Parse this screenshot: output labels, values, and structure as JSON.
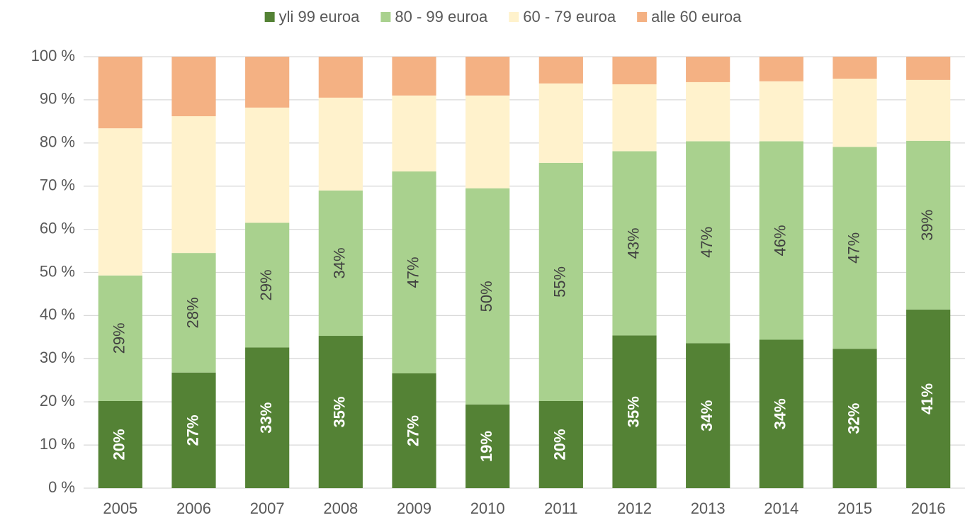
{
  "chart_data": {
    "type": "stacked_bar",
    "categories": [
      "2005",
      "2006",
      "2007",
      "2008",
      "2009",
      "2010",
      "2011",
      "2012",
      "2013",
      "2014",
      "2015",
      "2016"
    ],
    "series": [
      {
        "name": "yli 99 euroa",
        "color": "#548235",
        "values": [
          20.2,
          26.8,
          32.6,
          35.3,
          26.6,
          19.4,
          20.2,
          35.4,
          33.6,
          34.4,
          32.3,
          41.4
        ],
        "value_labels": [
          "20%",
          "27%",
          "33%",
          "35%",
          "27%",
          "19%",
          "20%",
          "35%",
          "34%",
          "34%",
          "32%",
          "41%"
        ]
      },
      {
        "name": "80 - 99 euroa",
        "color": "#a9d18e",
        "values": [
          29.1,
          27.7,
          28.9,
          33.7,
          46.8,
          50.1,
          55.2,
          42.7,
          46.8,
          46.0,
          46.8,
          39.1
        ],
        "value_labels": [
          "29%",
          "28%",
          "29%",
          "34%",
          "47%",
          "50%",
          "55%",
          "43%",
          "47%",
          "46%",
          "47%",
          "39%"
        ]
      },
      {
        "name": "60 - 79 euroa",
        "color": "#fff2cc",
        "values": [
          34.1,
          31.7,
          26.7,
          21.5,
          17.6,
          21.5,
          18.4,
          15.5,
          13.7,
          13.9,
          15.8,
          14.1
        ]
      },
      {
        "name": "alle 60 euroa",
        "color": "#f4b183",
        "values": [
          16.6,
          13.8,
          11.8,
          9.5,
          9.0,
          9.0,
          6.2,
          6.4,
          5.9,
          5.7,
          5.1,
          5.4
        ]
      }
    ],
    "ylim": [
      0,
      100
    ],
    "yticks": [
      {
        "value": 0,
        "label": "0 %"
      },
      {
        "value": 10,
        "label": "10 %"
      },
      {
        "value": 20,
        "label": "20 %"
      },
      {
        "value": 30,
        "label": "30 %"
      },
      {
        "value": 40,
        "label": "40 %"
      },
      {
        "value": 50,
        "label": "50 %"
      },
      {
        "value": 60,
        "label": "60 %"
      },
      {
        "value": 70,
        "label": "70 %"
      },
      {
        "value": 80,
        "label": "80 %"
      },
      {
        "value": 90,
        "label": "90 %"
      },
      {
        "value": 100,
        "label": "100 %"
      }
    ],
    "grid": true,
    "legend": "top"
  }
}
